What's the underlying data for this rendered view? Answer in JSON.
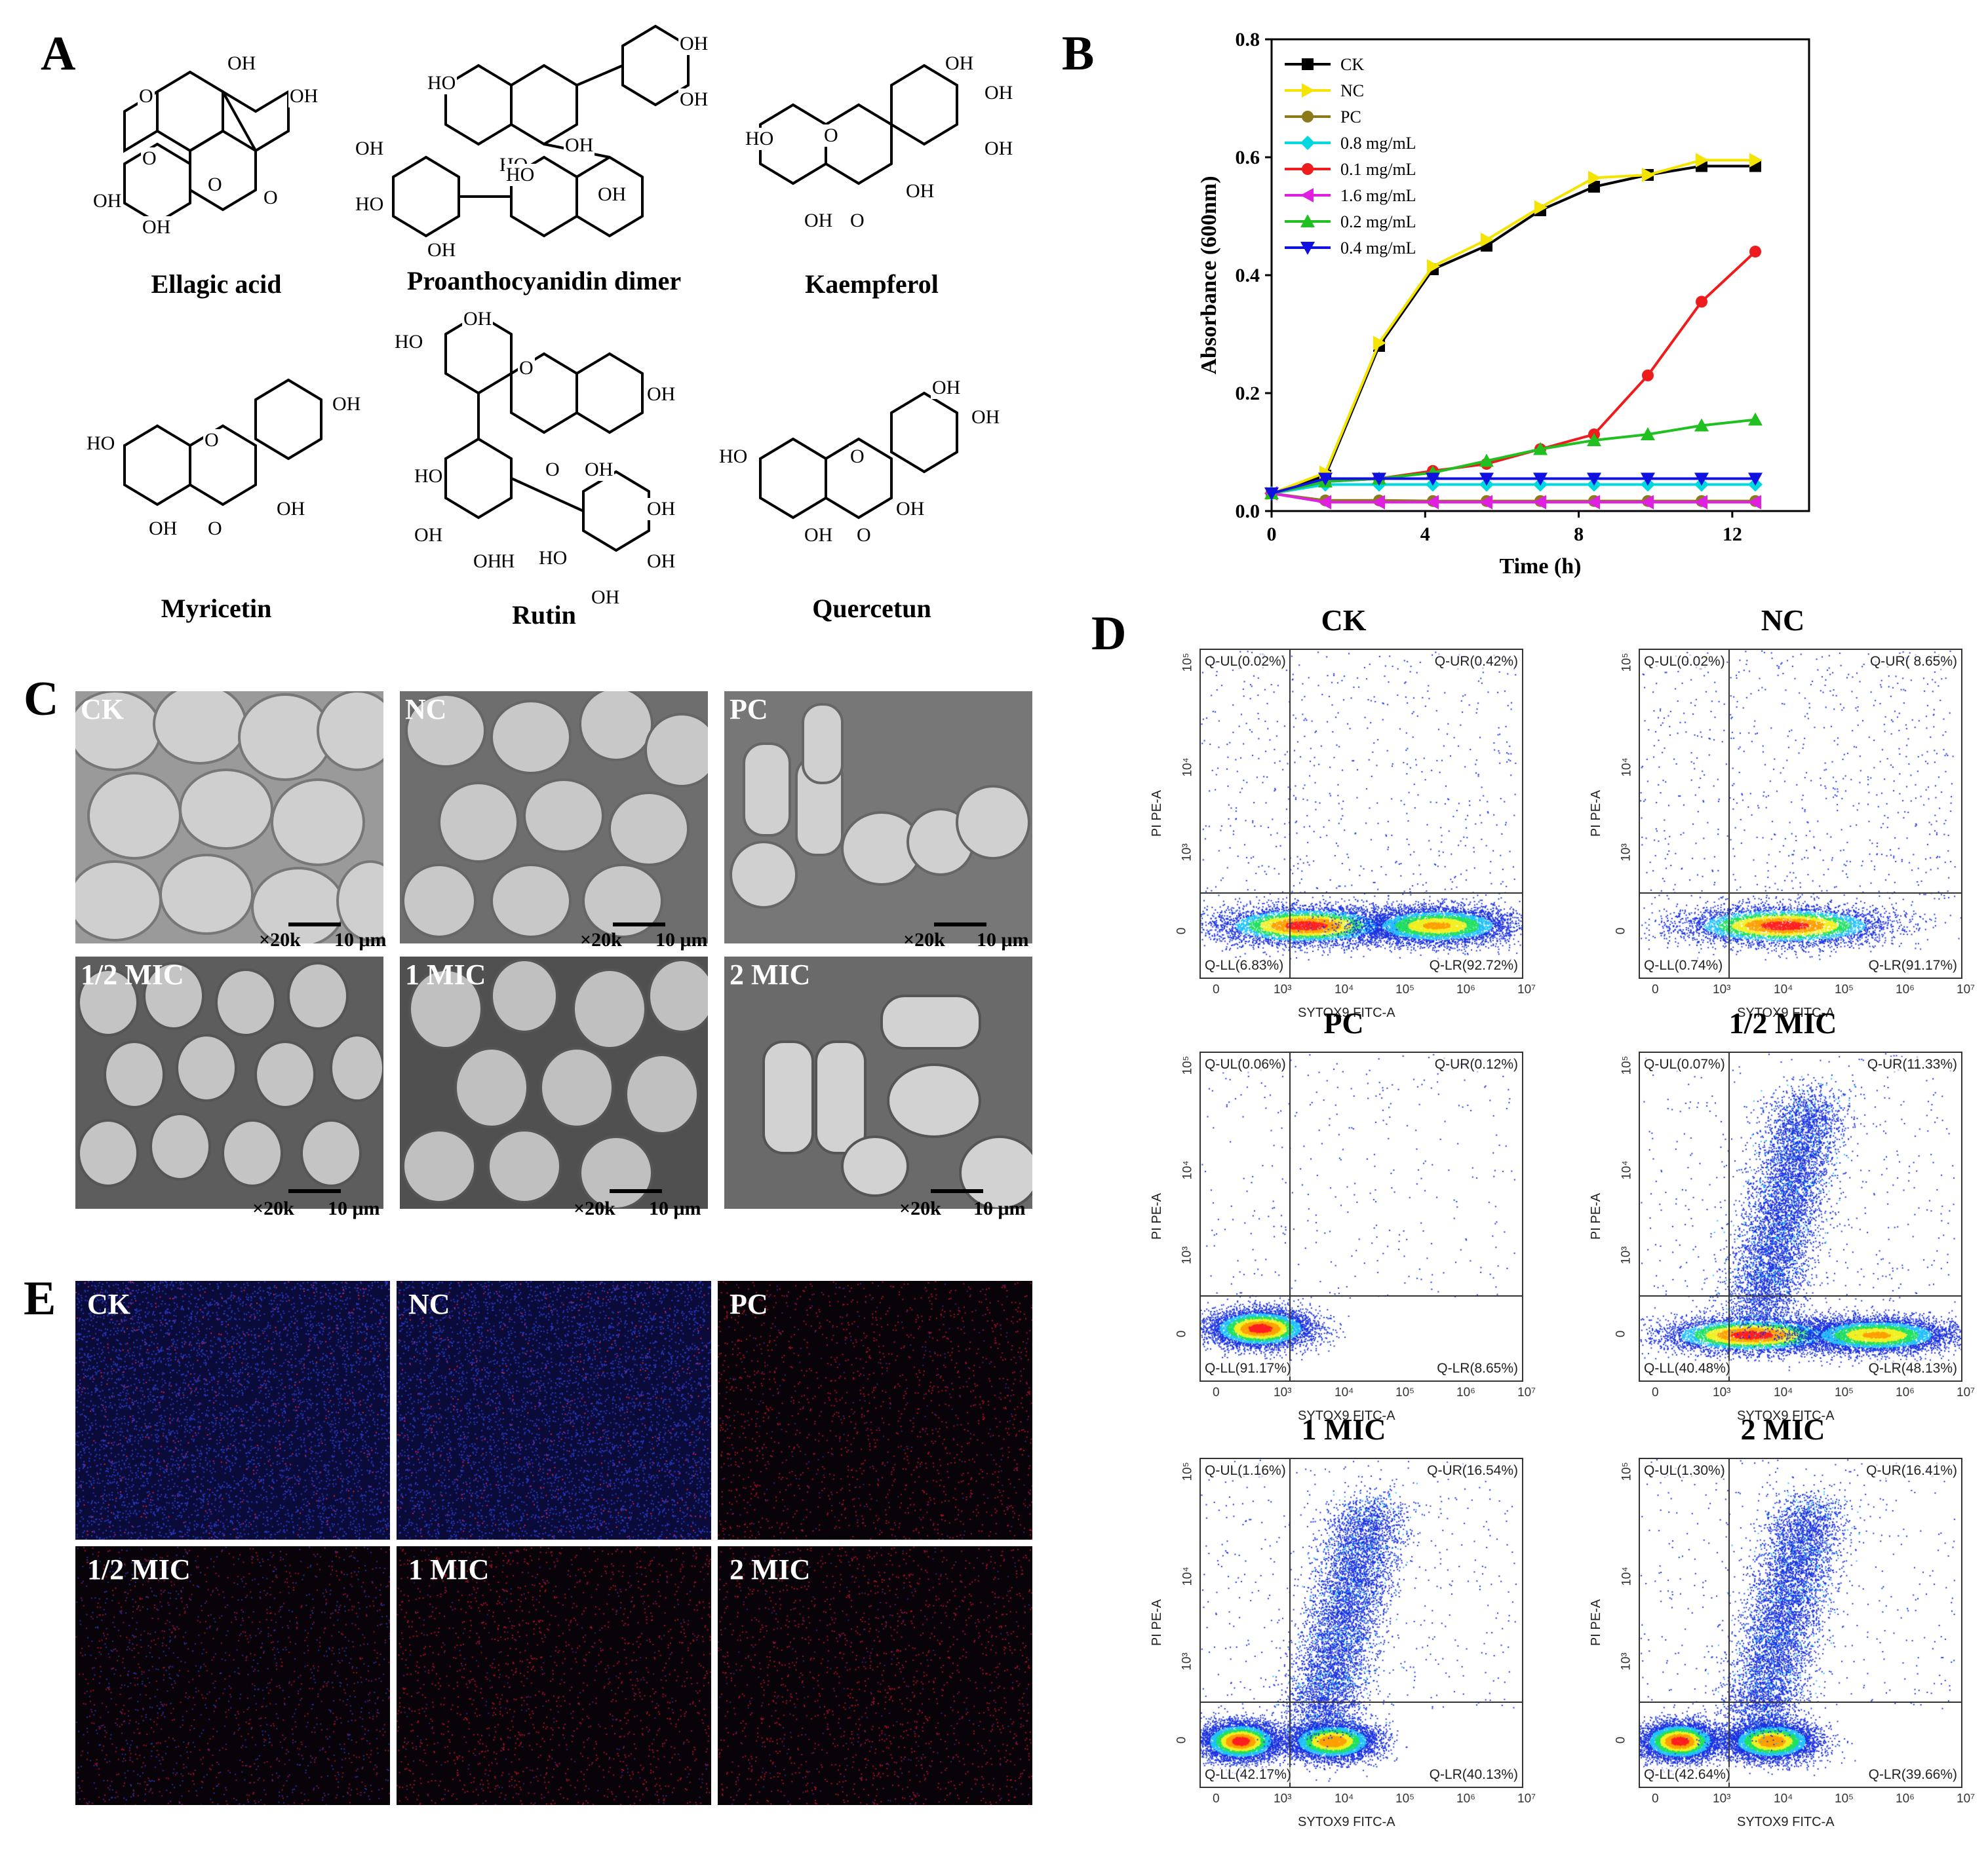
{
  "panels": {
    "A": "A",
    "B": "B",
    "C": "C",
    "D": "D",
    "E": "E"
  },
  "panel_a": {
    "molecules": [
      {
        "name": "Ellagic acid",
        "atoms": [
          "OH",
          "OH",
          "OH",
          "OH",
          "O",
          "O",
          "O",
          "O"
        ]
      },
      {
        "name": "Proanthocyanidin dimer",
        "atoms": [
          "HO",
          "OH",
          "OH",
          "OH",
          "HO",
          "OH",
          "HO",
          "OH",
          "OH",
          "HO"
        ]
      },
      {
        "name": "Kaempferol",
        "atoms": [
          "OH",
          "OH",
          "OH",
          "HO",
          "OH",
          "OH",
          "O",
          "O"
        ]
      },
      {
        "name": "Myricetin",
        "atoms": [
          "OH",
          "HO",
          "OH",
          "OH",
          "O",
          "O"
        ]
      },
      {
        "name": "Rutin",
        "atoms": [
          "OH",
          "HO",
          "OH",
          "O",
          "O",
          "OH",
          "HO",
          "OH",
          "OH",
          "HO",
          "OH",
          "OH",
          "OH",
          "OH"
        ]
      },
      {
        "name": "Quercetun",
        "atoms": [
          "OH",
          "OH",
          "HO",
          "OH",
          "OH",
          "O",
          "O"
        ]
      }
    ]
  },
  "panel_c": {
    "images": [
      {
        "label": "CK",
        "magnification": "×20k",
        "scale": "10 μm"
      },
      {
        "label": "NC",
        "magnification": "×20k",
        "scale": "10 μm"
      },
      {
        "label": "PC",
        "magnification": "×20k",
        "scale": "10 μm"
      },
      {
        "label": "1/2 MIC",
        "magnification": "×20k",
        "scale": "10 μm"
      },
      {
        "label": "1 MIC",
        "magnification": "×20k",
        "scale": "10 μm"
      },
      {
        "label": "2 MIC",
        "magnification": "×20k",
        "scale": "10 μm"
      }
    ]
  },
  "panel_e": {
    "images": [
      {
        "label": "CK"
      },
      {
        "label": "NC"
      },
      {
        "label": "PC"
      },
      {
        "label": "1/2 MIC"
      },
      {
        "label": "1 MIC"
      },
      {
        "label": "2 MIC"
      }
    ]
  },
  "chart_data": [
    {
      "type": "line",
      "panel": "B",
      "xlabel": "Time (h)",
      "ylabel": "Absorbance (600nm)",
      "xlim": [
        0,
        14
      ],
      "ylim": [
        0,
        0.8
      ],
      "x_ticks": [
        "0",
        "4",
        "8",
        "12"
      ],
      "y_ticks": [
        "0.0",
        "0.2",
        "0.4",
        "0.6",
        "0.8"
      ],
      "legend_position": "top-left",
      "x": [
        0,
        1.4,
        2.8,
        4.2,
        5.6,
        7.0,
        8.4,
        9.8,
        11.2,
        12.6
      ],
      "series": [
        {
          "name": "CK",
          "color": "#000000",
          "marker": "square",
          "values": [
            0.03,
            0.06,
            0.28,
            0.41,
            0.45,
            0.51,
            0.55,
            0.57,
            0.585,
            0.585
          ]
        },
        {
          "name": "NC",
          "color": "#f5e400",
          "marker": "triangle-right",
          "values": [
            0.03,
            0.065,
            0.285,
            0.415,
            0.46,
            0.515,
            0.565,
            0.57,
            0.595,
            0.595
          ]
        },
        {
          "name": "PC",
          "color": "#8a7a1a",
          "marker": "circle",
          "values": [
            0.03,
            0.018,
            0.018,
            0.017,
            0.017,
            0.017,
            0.017,
            0.017,
            0.017,
            0.017
          ]
        },
        {
          "name": "0.8 mg/mL",
          "color": "#00d8e0",
          "marker": "diamond",
          "values": [
            0.03,
            0.045,
            0.045,
            0.045,
            0.045,
            0.045,
            0.045,
            0.045,
            0.045,
            0.045
          ]
        },
        {
          "name": "0.1 mg/mL",
          "color": "#ee1c1c",
          "marker": "circle",
          "values": [
            0.03,
            0.05,
            0.055,
            0.068,
            0.08,
            0.105,
            0.13,
            0.23,
            0.355,
            0.44
          ]
        },
        {
          "name": "1.6 mg/mL",
          "color": "#e020e0",
          "marker": "triangle-left",
          "values": [
            0.03,
            0.015,
            0.015,
            0.015,
            0.015,
            0.015,
            0.015,
            0.015,
            0.015,
            0.015
          ]
        },
        {
          "name": "0.2 mg/mL",
          "color": "#20c020",
          "marker": "triangle-up",
          "values": [
            0.03,
            0.05,
            0.055,
            0.065,
            0.085,
            0.105,
            0.12,
            0.13,
            0.145,
            0.155
          ]
        },
        {
          "name": "0.4 mg/mL",
          "color": "#1010e0",
          "marker": "triangle-down",
          "values": [
            0.03,
            0.055,
            0.055,
            0.055,
            0.055,
            0.055,
            0.055,
            0.055,
            0.055,
            0.055
          ]
        }
      ]
    },
    {
      "type": "scatter",
      "panel": "D",
      "xlabel": "SYTOX9 FITC-A",
      "ylabel": "PI PE-A",
      "x_ticks": [
        "0",
        "10³",
        "10⁴",
        "10⁵",
        "10⁶",
        "10⁷"
      ],
      "y_ticks": [
        "0",
        "10³",
        "10⁴",
        "10⁵"
      ],
      "plots": [
        {
          "title": "CK",
          "UL": "Q-UL(0.02%)",
          "UR": "Q-UR(0.42%)",
          "LL": "Q-LL(6.83%)",
          "LR": "Q-LR(92.72%)"
        },
        {
          "title": "NC",
          "UL": "Q-UL(0.02%)",
          "UR": "Q-UR( 8.65%)",
          "LL": "Q-LL(0.74%)",
          "LR": "Q-LR(91.17%)"
        },
        {
          "title": "PC",
          "UL": "Q-UL(0.06%)",
          "UR": "Q-UR(0.12%)",
          "LL": "Q-LL(91.17%)",
          "LR": "Q-LR(8.65%)"
        },
        {
          "title": "1/2 MIC",
          "UL": "Q-UL(0.07%)",
          "UR": "Q-UR(11.33%)",
          "LL": "Q-LL(40.48%)",
          "LR": "Q-LR(48.13%)"
        },
        {
          "title": "1 MIC",
          "UL": "Q-UL(1.16%)",
          "UR": "Q-UR(16.54%)",
          "LL": "Q-LL(42.17%)",
          "LR": "Q-LR(40.13%)"
        },
        {
          "title": "2 MIC",
          "UL": "Q-UL(1.30%)",
          "UR": "Q-UR(16.41%)",
          "LL": "Q-LL(42.64%)",
          "LR": "Q-LR(39.66%)"
        }
      ]
    }
  ]
}
